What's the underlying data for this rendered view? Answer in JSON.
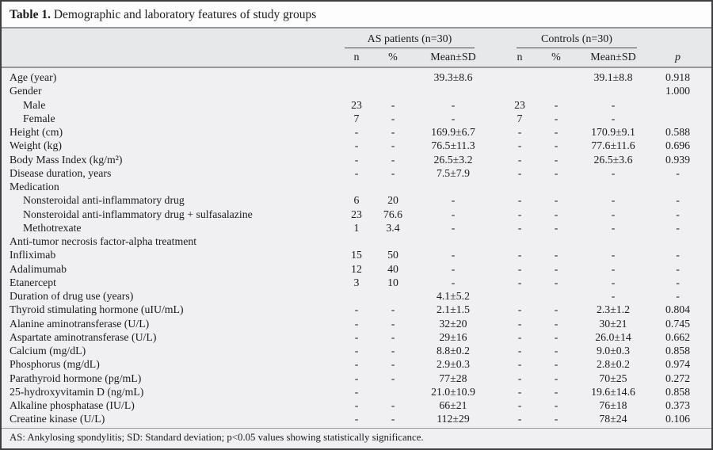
{
  "colors": {
    "border": "#3e3e40",
    "title_bg": "#fdfdfd",
    "header_band": "#e7e8ea",
    "body_bg": "#f0f0f2",
    "rule": "#949699",
    "text": "#1b1b1d"
  },
  "table": {
    "title_bold": "Table 1.",
    "title_rest": " Demographic and laboratory features of study groups",
    "group_headers": [
      {
        "label": "AS patients (n=30)"
      },
      {
        "label": "Controls (n=30)"
      }
    ],
    "sub_headers": {
      "as_n": "n",
      "as_pct": "%",
      "as_mean": "Mean±SD",
      "c_n": "n",
      "c_pct": "%",
      "c_mean": "Mean±SD",
      "p": "p"
    },
    "rows": [
      {
        "label": "Age (year)",
        "indent": false,
        "as_n": "",
        "as_pct": "",
        "as_mean": "39.3±8.6",
        "c_n": "",
        "c_pct": "",
        "c_mean": "39.1±8.8",
        "p": "0.918"
      },
      {
        "label": "Gender",
        "indent": false,
        "as_n": "",
        "as_pct": "",
        "as_mean": "",
        "c_n": "",
        "c_pct": "",
        "c_mean": "",
        "p": "1.000"
      },
      {
        "label": "Male",
        "indent": true,
        "as_n": "23",
        "as_pct": "-",
        "as_mean": "-",
        "c_n": "23",
        "c_pct": "-",
        "c_mean": "-",
        "p": ""
      },
      {
        "label": "Female",
        "indent": true,
        "as_n": "7",
        "as_pct": "-",
        "as_mean": "-",
        "c_n": "7",
        "c_pct": "-",
        "c_mean": "-",
        "p": ""
      },
      {
        "label": "Height (cm)",
        "indent": false,
        "as_n": "-",
        "as_pct": "-",
        "as_mean": "169.9±6.7",
        "c_n": "-",
        "c_pct": "-",
        "c_mean": "170.9±9.1",
        "p": "0.588"
      },
      {
        "label": "Weight (kg)",
        "indent": false,
        "as_n": "-",
        "as_pct": "-",
        "as_mean": "76.5±11.3",
        "c_n": "-",
        "c_pct": "-",
        "c_mean": "77.6±11.6",
        "p": "0.696"
      },
      {
        "label": "Body Mass Index (kg/m²)",
        "indent": false,
        "as_n": "-",
        "as_pct": "-",
        "as_mean": "26.5±3.2",
        "c_n": "-",
        "c_pct": "-",
        "c_mean": "26.5±3.6",
        "p": "0.939"
      },
      {
        "label": "Disease duration, years",
        "indent": false,
        "as_n": "-",
        "as_pct": "-",
        "as_mean": "7.5±7.9",
        "c_n": "-",
        "c_pct": "-",
        "c_mean": "-",
        "p": "-"
      },
      {
        "label": "Medication",
        "indent": false,
        "as_n": "",
        "as_pct": "",
        "as_mean": "",
        "c_n": "",
        "c_pct": "",
        "c_mean": "",
        "p": ""
      },
      {
        "label": "Nonsteroidal anti-inflammatory drug",
        "indent": true,
        "as_n": "6",
        "as_pct": "20",
        "as_mean": "-",
        "c_n": "-",
        "c_pct": "-",
        "c_mean": "-",
        "p": "-"
      },
      {
        "label": "Nonsteroidal anti-inflammatory drug + sulfasalazine",
        "indent": true,
        "as_n": "23",
        "as_pct": "76.6",
        "as_mean": "-",
        "c_n": "-",
        "c_pct": "-",
        "c_mean": "-",
        "p": "-"
      },
      {
        "label": "Methotrexate",
        "indent": true,
        "as_n": "1",
        "as_pct": "3.4",
        "as_mean": "-",
        "c_n": "-",
        "c_pct": "-",
        "c_mean": "-",
        "p": "-"
      },
      {
        "label": "Anti-tumor necrosis factor-alpha treatment",
        "indent": false,
        "as_n": "",
        "as_pct": "",
        "as_mean": "",
        "c_n": "",
        "c_pct": "",
        "c_mean": "",
        "p": ""
      },
      {
        "label": "Infliximab",
        "indent": false,
        "as_n": "15",
        "as_pct": "50",
        "as_mean": "-",
        "c_n": "-",
        "c_pct": "-",
        "c_mean": "-",
        "p": "-"
      },
      {
        "label": "Adalimumab",
        "indent": false,
        "as_n": "12",
        "as_pct": "40",
        "as_mean": "-",
        "c_n": "-",
        "c_pct": "-",
        "c_mean": "-",
        "p": "-"
      },
      {
        "label": "Etanercept",
        "indent": false,
        "as_n": "3",
        "as_pct": "10",
        "as_mean": "-",
        "c_n": "-",
        "c_pct": "-",
        "c_mean": "-",
        "p": "-"
      },
      {
        "label": "Duration of drug use (years)",
        "indent": false,
        "as_n": "",
        "as_pct": "",
        "as_mean": "4.1±5.2",
        "c_n": "",
        "c_pct": "",
        "c_mean": "-",
        "p": "-"
      },
      {
        "label": "Thyroid stimulating hormone (uIU/mL)",
        "indent": false,
        "as_n": "-",
        "as_pct": "-",
        "as_mean": "2.1±1.5",
        "c_n": "-",
        "c_pct": "-",
        "c_mean": "2.3±1.2",
        "p": "0.804"
      },
      {
        "label": "Alanine aminotransferase (U/L)",
        "indent": false,
        "as_n": "-",
        "as_pct": "-",
        "as_mean": "32±20",
        "c_n": "-",
        "c_pct": "-",
        "c_mean": "30±21",
        "p": "0.745"
      },
      {
        "label": "Aspartate aminotransferase (U/L)",
        "indent": false,
        "as_n": "-",
        "as_pct": "-",
        "as_mean": "29±16",
        "c_n": "-",
        "c_pct": "-",
        "c_mean": "26.0±14",
        "p": "0.662"
      },
      {
        "label": "Calcium (mg/dL)",
        "indent": false,
        "as_n": "-",
        "as_pct": "-",
        "as_mean": "8.8±0.2",
        "c_n": "-",
        "c_pct": "-",
        "c_mean": "9.0±0.3",
        "p": "0.858"
      },
      {
        "label": "Phosphorus (mg/dL)",
        "indent": false,
        "as_n": "-",
        "as_pct": "-",
        "as_mean": "2.9±0.3",
        "c_n": "-",
        "c_pct": "-",
        "c_mean": "2.8±0.2",
        "p": "0.974"
      },
      {
        "label": "Parathyroid hormone (pg/mL)",
        "indent": false,
        "as_n": "-",
        "as_pct": "-",
        "as_mean": "77±28",
        "c_n": "-",
        "c_pct": "-",
        "c_mean": "70±25",
        "p": "0.272"
      },
      {
        "label": "25-hydroxyvitamin D (ng/mL)",
        "indent": false,
        "as_n": "-",
        "as_pct": "",
        "as_mean": "21.0±10.9",
        "c_n": "-",
        "c_pct": "-",
        "c_mean": "19.6±14.6",
        "p": "0.858"
      },
      {
        "label": "Alkaline phosphatase (IU/L)",
        "indent": false,
        "as_n": "-",
        "as_pct": "-",
        "as_mean": "66±21",
        "c_n": "-",
        "c_pct": "-",
        "c_mean": "76±18",
        "p": "0.373"
      },
      {
        "label": "Creatine kinase (U/L)",
        "indent": false,
        "as_n": "-",
        "as_pct": "-",
        "as_mean": "112±29",
        "c_n": "-",
        "c_pct": "-",
        "c_mean": "78±24",
        "p": "0.106"
      }
    ],
    "footnote": "AS: Ankylosing spondylitis; SD: Standard deviation; p<0.05 values showing statistically significance."
  }
}
